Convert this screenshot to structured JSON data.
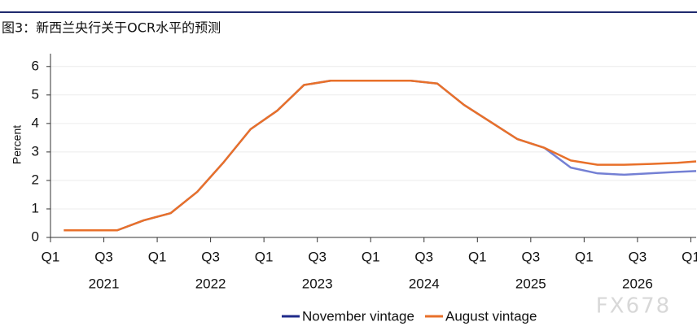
{
  "chart_data": {
    "type": "line",
    "title": "图3：新西兰央行关于OCR水平的预测",
    "y_label": "Percent",
    "watermark": "FX678",
    "x": [
      2021.125,
      2021.375,
      2021.625,
      2021.875,
      2022.125,
      2022.375,
      2022.625,
      2022.875,
      2023.125,
      2023.375,
      2023.625,
      2023.875,
      2024.125,
      2024.375,
      2024.625,
      2024.875,
      2025.125,
      2025.375,
      2025.625,
      2025.875,
      2026.125,
      2026.375,
      2026.625,
      2026.875,
      2027.05
    ],
    "series": [
      {
        "name": "November vintage",
        "color": "#7480d4",
        "legend_color": "#1f2a8a",
        "values": [
          0.25,
          0.25,
          0.25,
          0.6,
          0.85,
          1.6,
          2.65,
          3.8,
          4.45,
          5.35,
          5.5,
          5.5,
          5.5,
          5.5,
          5.4,
          4.65,
          4.05,
          3.45,
          3.15,
          2.45,
          2.25,
          2.2,
          2.25,
          2.3,
          2.33
        ]
      },
      {
        "name": "August vintage",
        "color": "#e8702a",
        "legend_color": "#e8702a",
        "values": [
          0.25,
          0.25,
          0.25,
          0.6,
          0.85,
          1.6,
          2.65,
          3.8,
          4.45,
          5.35,
          5.5,
          5.5,
          5.5,
          5.5,
          5.4,
          4.65,
          4.05,
          3.45,
          3.15,
          2.7,
          2.55,
          2.55,
          2.58,
          2.62,
          2.67
        ]
      }
    ],
    "xlim": [
      2021,
      2027.05
    ],
    "xticks": [
      {
        "value": 2021,
        "label": "Q1"
      },
      {
        "value": 2021.5,
        "label": "Q3"
      },
      {
        "value": 2022,
        "label": "Q1"
      },
      {
        "value": 2022.5,
        "label": "Q3"
      },
      {
        "value": 2023,
        "label": "Q1"
      },
      {
        "value": 2023.5,
        "label": "Q3"
      },
      {
        "value": 2024,
        "label": "Q1"
      },
      {
        "value": 2024.5,
        "label": "Q3"
      },
      {
        "value": 2025,
        "label": "Q1"
      },
      {
        "value": 2025.5,
        "label": "Q3"
      },
      {
        "value": 2026,
        "label": "Q1"
      },
      {
        "value": 2026.5,
        "label": "Q3"
      },
      {
        "value": 2027,
        "label": "Q1"
      }
    ],
    "years": [
      "2021",
      "2022",
      "2023",
      "2024",
      "2025",
      "2026"
    ],
    "ylim": [
      0,
      6.45
    ],
    "yticks": [
      0,
      1,
      2,
      3,
      4,
      5,
      6
    ],
    "grid": true
  }
}
